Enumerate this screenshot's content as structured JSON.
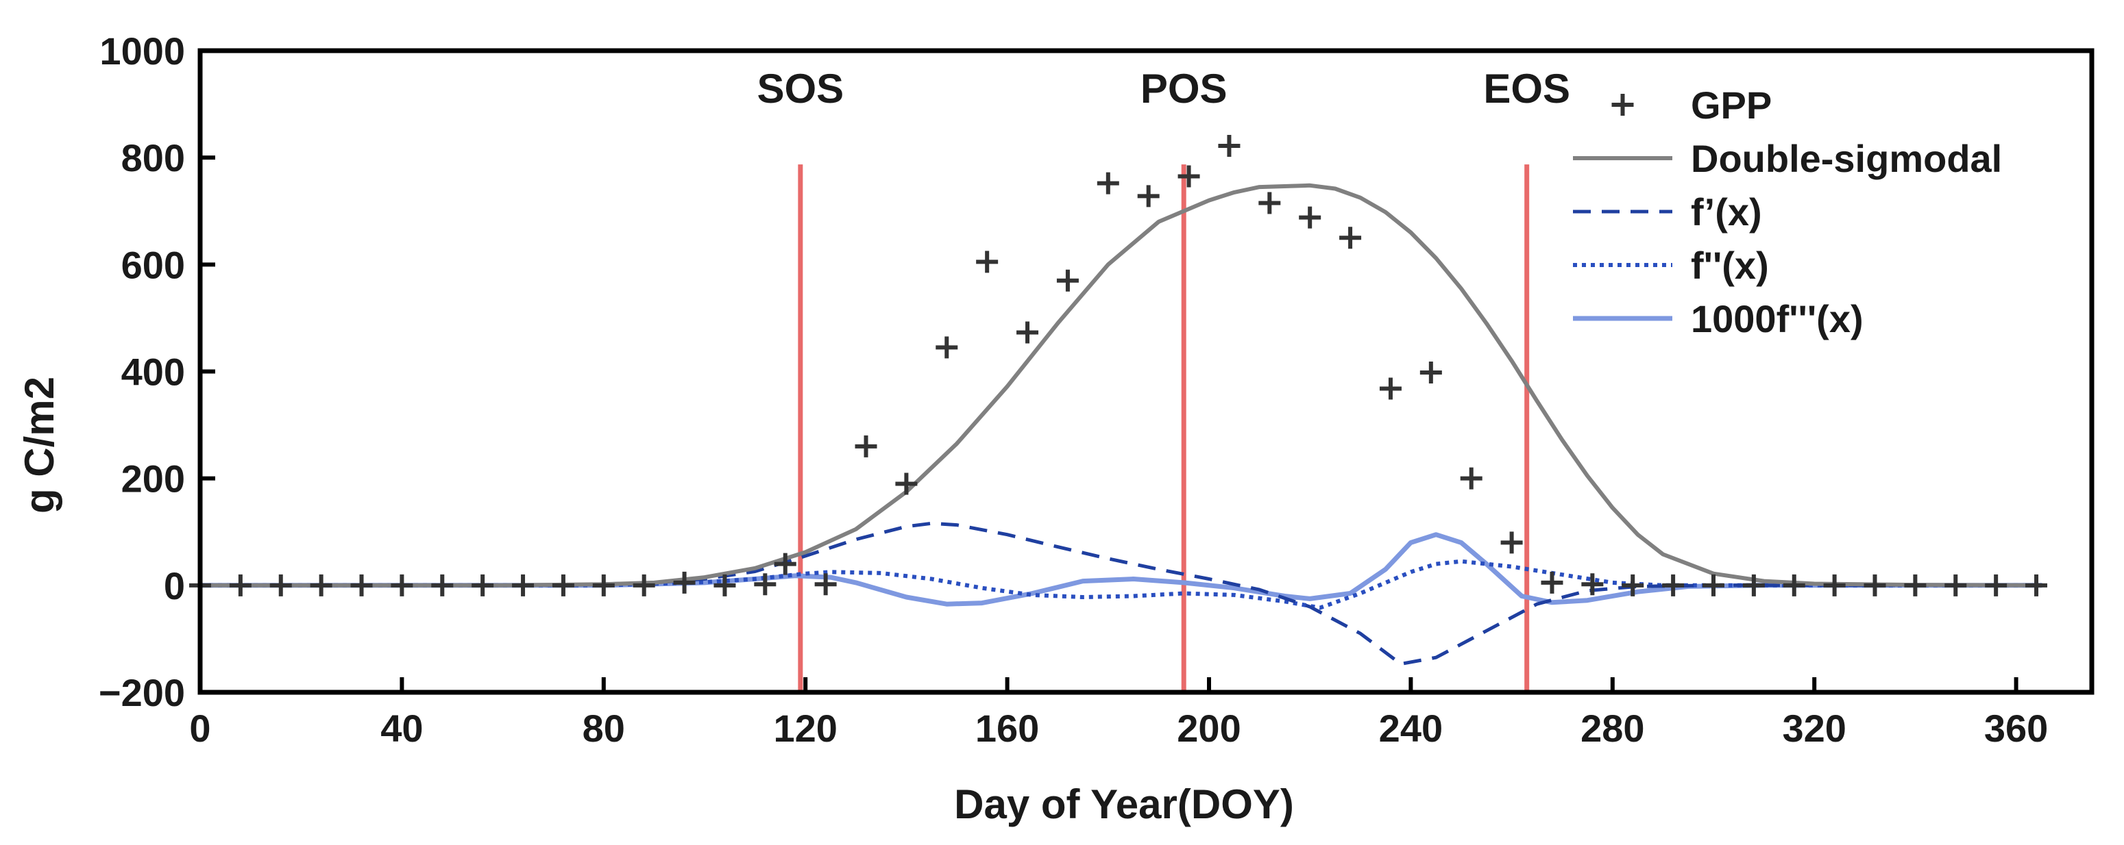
{
  "chart_data": {
    "type": "line",
    "xlabel": "Day of Year(DOY)",
    "ylabel": "g C/m2",
    "xlim": [
      0,
      375
    ],
    "ylim": [
      -200,
      1000
    ],
    "xticks": [
      0,
      40,
      80,
      120,
      160,
      200,
      240,
      280,
      320,
      360
    ],
    "yticks": [
      -200,
      0,
      200,
      400,
      600,
      800,
      1000
    ],
    "xtick_labels": [
      "0",
      "40",
      "80",
      "120",
      "160",
      "200",
      "240",
      "280",
      "320",
      "360"
    ],
    "ytick_labels": [
      "−200",
      "0",
      "200",
      "400",
      "600",
      "800",
      "1000"
    ],
    "legend_position": "top-right",
    "colors": {
      "gpp": "#333333",
      "double_sigmoidal": "#808080",
      "first_derivative": "#1f3fa0",
      "second_derivative": "#2a4fc0",
      "third_derivative": "#7e98e0",
      "phase_lines": "#e86a6a",
      "axes": "#000000"
    },
    "phase_lines": [
      {
        "label": "SOS",
        "x": 119
      },
      {
        "label": "POS",
        "x": 195
      },
      {
        "label": "EOS",
        "x": 263
      }
    ],
    "series": [
      {
        "name": "GPP",
        "style": "marker-plus",
        "points": [
          [
            0,
            0
          ],
          [
            8,
            0
          ],
          [
            16,
            0
          ],
          [
            24,
            0
          ],
          [
            32,
            0
          ],
          [
            40,
            0
          ],
          [
            48,
            0
          ],
          [
            56,
            0
          ],
          [
            64,
            0
          ],
          [
            72,
            0
          ],
          [
            80,
            0
          ],
          [
            88,
            0
          ],
          [
            96,
            5
          ],
          [
            104,
            0
          ],
          [
            112,
            2
          ],
          [
            116,
            40
          ],
          [
            124,
            2
          ],
          [
            132,
            260
          ],
          [
            140,
            190
          ],
          [
            148,
            445
          ],
          [
            156,
            605
          ],
          [
            164,
            473
          ],
          [
            172,
            570
          ],
          [
            180,
            752
          ],
          [
            188,
            728
          ],
          [
            196,
            765
          ],
          [
            204,
            822
          ],
          [
            212,
            715
          ],
          [
            220,
            688
          ],
          [
            228,
            650
          ],
          [
            236,
            368
          ],
          [
            244,
            398
          ],
          [
            252,
            200
          ],
          [
            260,
            80
          ],
          [
            268,
            5
          ],
          [
            276,
            2
          ],
          [
            284,
            0
          ],
          [
            292,
            0
          ],
          [
            300,
            0
          ],
          [
            308,
            0
          ],
          [
            316,
            0
          ],
          [
            324,
            0
          ],
          [
            332,
            0
          ],
          [
            340,
            0
          ],
          [
            348,
            0
          ],
          [
            356,
            0
          ],
          [
            364,
            0
          ]
        ]
      },
      {
        "name": "Double-sigmodal",
        "style": "solid",
        "points": [
          [
            0,
            0
          ],
          [
            60,
            0
          ],
          [
            80,
            2
          ],
          [
            90,
            5
          ],
          [
            100,
            15
          ],
          [
            110,
            32
          ],
          [
            120,
            62
          ],
          [
            130,
            105
          ],
          [
            140,
            175
          ],
          [
            150,
            265
          ],
          [
            160,
            372
          ],
          [
            170,
            490
          ],
          [
            180,
            600
          ],
          [
            190,
            680
          ],
          [
            200,
            720
          ],
          [
            205,
            735
          ],
          [
            210,
            745
          ],
          [
            220,
            748
          ],
          [
            225,
            742
          ],
          [
            230,
            725
          ],
          [
            235,
            698
          ],
          [
            240,
            660
          ],
          [
            245,
            612
          ],
          [
            250,
            555
          ],
          [
            255,
            490
          ],
          [
            260,
            420
          ],
          [
            265,
            345
          ],
          [
            270,
            272
          ],
          [
            275,
            205
          ],
          [
            280,
            145
          ],
          [
            285,
            95
          ],
          [
            290,
            58
          ],
          [
            300,
            22
          ],
          [
            310,
            8
          ],
          [
            320,
            3
          ],
          [
            340,
            1
          ],
          [
            365,
            0
          ]
        ]
      },
      {
        "name": "f’(x)",
        "style": "dashed",
        "points": [
          [
            0,
            0
          ],
          [
            70,
            0
          ],
          [
            90,
            5
          ],
          [
            100,
            12
          ],
          [
            110,
            26
          ],
          [
            120,
            55
          ],
          [
            130,
            86
          ],
          [
            140,
            110
          ],
          [
            145,
            116
          ],
          [
            150,
            113
          ],
          [
            160,
            95
          ],
          [
            170,
            72
          ],
          [
            180,
            50
          ],
          [
            190,
            30
          ],
          [
            200,
            12
          ],
          [
            210,
            -8
          ],
          [
            220,
            -40
          ],
          [
            230,
            -90
          ],
          [
            238,
            -147
          ],
          [
            245,
            -135
          ],
          [
            255,
            -85
          ],
          [
            265,
            -35
          ],
          [
            275,
            -10
          ],
          [
            285,
            -2
          ],
          [
            300,
            0
          ],
          [
            365,
            0
          ]
        ]
      },
      {
        "name": "f''(x)",
        "style": "dotted",
        "points": [
          [
            0,
            0
          ],
          [
            80,
            0
          ],
          [
            100,
            6
          ],
          [
            110,
            12
          ],
          [
            120,
            22
          ],
          [
            125,
            25
          ],
          [
            135,
            23
          ],
          [
            145,
            12
          ],
          [
            155,
            -5
          ],
          [
            165,
            -18
          ],
          [
            175,
            -22
          ],
          [
            185,
            -20
          ],
          [
            195,
            -15
          ],
          [
            205,
            -18
          ],
          [
            215,
            -30
          ],
          [
            222,
            -42
          ],
          [
            230,
            -15
          ],
          [
            240,
            25
          ],
          [
            245,
            40
          ],
          [
            250,
            45
          ],
          [
            260,
            35
          ],
          [
            270,
            20
          ],
          [
            280,
            5
          ],
          [
            290,
            0
          ],
          [
            365,
            0
          ]
        ]
      },
      {
        "name": "1000f'''(x)",
        "style": "solid-light",
        "points": [
          [
            0,
            0
          ],
          [
            80,
            0
          ],
          [
            100,
            5
          ],
          [
            110,
            12
          ],
          [
            118,
            18
          ],
          [
            125,
            15
          ],
          [
            130,
            5
          ],
          [
            140,
            -22
          ],
          [
            148,
            -35
          ],
          [
            155,
            -33
          ],
          [
            165,
            -15
          ],
          [
            175,
            8
          ],
          [
            185,
            12
          ],
          [
            195,
            5
          ],
          [
            205,
            -5
          ],
          [
            215,
            -20
          ],
          [
            220,
            -25
          ],
          [
            228,
            -15
          ],
          [
            235,
            30
          ],
          [
            240,
            80
          ],
          [
            245,
            95
          ],
          [
            250,
            80
          ],
          [
            255,
            40
          ],
          [
            262,
            -20
          ],
          [
            268,
            -32
          ],
          [
            275,
            -28
          ],
          [
            285,
            -12
          ],
          [
            295,
            -2
          ],
          [
            310,
            0
          ],
          [
            365,
            0
          ]
        ]
      }
    ]
  }
}
